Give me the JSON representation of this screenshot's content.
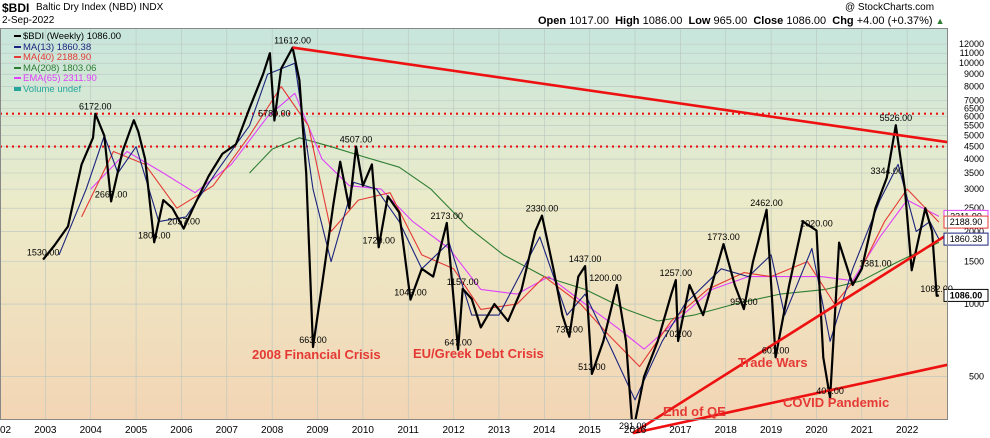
{
  "header": {
    "symbol": "$BDI",
    "name": "Baltic Dry Index (NBD)  INDX",
    "date": "2-Sep-2022",
    "source": "@ StockCharts.com",
    "open_label": "Open",
    "open": "1017.00",
    "high_label": "High",
    "high": "1086.00",
    "low_label": "Low",
    "low": "965.00",
    "close_label": "Close",
    "close": "1086.00",
    "chg_label": "Chg",
    "chg": "+4.00 (+0.37%)",
    "chg_arrow": "▲"
  },
  "legend": [
    {
      "text": "$BDI (Weekly) 1086.00",
      "color": "#000000",
      "icon": "line-icon"
    },
    {
      "text": "MA(13) 1860.38",
      "color": "#1a237e",
      "icon": "line-icon"
    },
    {
      "text": "MA(40) 2188.90",
      "color": "#e53935",
      "icon": "line-icon"
    },
    {
      "text": "MA(208) 1803.06",
      "color": "#2e7d32",
      "icon": "line-icon"
    },
    {
      "text": "EMA(65) 2311.90",
      "color": "#e040fb",
      "icon": "line-icon"
    },
    {
      "text": "Volume undef",
      "color": "#26a69a",
      "icon": "bar-icon"
    }
  ],
  "annotations": [
    {
      "text": "2008 Financial Crisis",
      "color": "#e53935"
    },
    {
      "text": "EU/Greek Debt Crisis",
      "color": "#e53935"
    },
    {
      "text": "End of QE",
      "color": "#e53935"
    },
    {
      "text": "Trade Wars",
      "color": "#e53935"
    },
    {
      "text": "COVID Pandemic",
      "color": "#e53935"
    }
  ],
  "colors": {
    "trendline": "#ee1111",
    "price": "#000000",
    "ma13": "#1a237e",
    "ma40": "#e53935",
    "ma208": "#2e7d32",
    "ema65": "#e040fb"
  },
  "chart_data": {
    "type": "line",
    "title": "$BDI Baltic Dry Index (NBD) INDX",
    "log_scale": true,
    "ylim": [
      330,
      14000
    ],
    "xlim": [
      2002.0,
      2022.9
    ],
    "x_ticks": [
      "2002",
      "2003",
      "2004",
      "2005",
      "2006",
      "2007",
      "2008",
      "2009",
      "2010",
      "2011",
      "2012",
      "2013",
      "2014",
      "2015",
      "2016",
      "2017",
      "2018",
      "2019",
      "2020",
      "2021",
      "2022"
    ],
    "y_ticks": [
      "12000",
      "11000",
      "10000",
      "9000",
      "8000",
      "7000",
      "6500",
      "6000",
      "5500",
      "5000",
      "4500",
      "4000",
      "3500",
      "3000",
      "2500",
      "2000",
      "1500",
      "1000",
      "500"
    ],
    "last_value_labels": [
      {
        "value": 2311.9,
        "text": "2311.90",
        "series": "EMA(65)"
      },
      {
        "value": 2188.9,
        "text": "2188.90",
        "series": "MA(40)"
      },
      {
        "value": 1860.38,
        "text": "1860.38",
        "series": "MA(13)"
      },
      {
        "value": 1086,
        "text": "1086.00",
        "series": "$BDI"
      }
    ],
    "reference_lines": [
      6172,
      4507
    ],
    "trendlines": [
      {
        "x": [
          2008.45,
          2022.9
        ],
        "y": [
          11612,
          4700
        ]
      },
      {
        "x": [
          2015.95,
          2022.9
        ],
        "y": [
          291,
          1950
        ]
      },
      {
        "x": [
          2015.95,
          2022.9
        ],
        "y": [
          291,
          560
        ]
      }
    ],
    "point_labels": [
      {
        "x": 2002.95,
        "y": 1530,
        "text": "1530.00"
      },
      {
        "x": 2004.1,
        "y": 6172,
        "text": "6172.00"
      },
      {
        "x": 2004.45,
        "y": 2667,
        "text": "2667.00"
      },
      {
        "x": 2005.4,
        "y": 1804,
        "text": "1804.00"
      },
      {
        "x": 2006.05,
        "y": 2057,
        "text": "2057.00"
      },
      {
        "x": 2008.45,
        "y": 11612,
        "text": "11612.00"
      },
      {
        "x": 2008.05,
        "y": 5780,
        "text": "5780.00"
      },
      {
        "x": 2008.9,
        "y": 663,
        "text": "663.00"
      },
      {
        "x": 2009.85,
        "y": 4507,
        "text": "4507.00"
      },
      {
        "x": 2010.35,
        "y": 1720,
        "text": "1720.00"
      },
      {
        "x": 2011.05,
        "y": 1043,
        "text": "1043.00"
      },
      {
        "x": 2011.85,
        "y": 2173,
        "text": "2173.00"
      },
      {
        "x": 2012.1,
        "y": 647,
        "text": "647.00"
      },
      {
        "x": 2012.2,
        "y": 1157,
        "text": "1157.00"
      },
      {
        "x": 2013.95,
        "y": 2330,
        "text": "2330.00"
      },
      {
        "x": 2014.55,
        "y": 732,
        "text": "732.00"
      },
      {
        "x": 2014.9,
        "y": 1437,
        "text": "1437.00"
      },
      {
        "x": 2015.05,
        "y": 513,
        "text": "513.00"
      },
      {
        "x": 2015.35,
        "y": 1200,
        "text": "1200.00"
      },
      {
        "x": 2015.95,
        "y": 291,
        "text": "291.00"
      },
      {
        "x": 2016.9,
        "y": 1257,
        "text": "1257.00"
      },
      {
        "x": 2016.95,
        "y": 702,
        "text": "702.00"
      },
      {
        "x": 2017.95,
        "y": 1773,
        "text": "1773.00"
      },
      {
        "x": 2018.4,
        "y": 953,
        "text": "953.00"
      },
      {
        "x": 2018.9,
        "y": 2462,
        "text": "2462.00"
      },
      {
        "x": 2019.1,
        "y": 601,
        "text": "601.00"
      },
      {
        "x": 2020.0,
        "y": 2020,
        "text": "2020.00"
      },
      {
        "x": 2020.3,
        "y": 407,
        "text": "407.00"
      },
      {
        "x": 2021.75,
        "y": 5526,
        "text": "5526.00"
      },
      {
        "x": 2021.55,
        "y": 3344,
        "text": "3344.00"
      },
      {
        "x": 2021.3,
        "y": 1381,
        "text": "1381.00"
      },
      {
        "x": 2022.65,
        "y": 1082,
        "text": "1082.00"
      }
    ],
    "series": [
      {
        "name": "$BDI (Weekly)",
        "points": [
          [
            2002.95,
            1530
          ],
          [
            2003.2,
            1750
          ],
          [
            2003.5,
            2100
          ],
          [
            2003.8,
            3800
          ],
          [
            2004.05,
            4900
          ],
          [
            2004.1,
            6172
          ],
          [
            2004.3,
            5000
          ],
          [
            2004.45,
            2667
          ],
          [
            2004.7,
            4300
          ],
          [
            2004.95,
            5800
          ],
          [
            2005.05,
            5200
          ],
          [
            2005.2,
            4000
          ],
          [
            2005.4,
            1804
          ],
          [
            2005.6,
            2700
          ],
          [
            2005.8,
            2500
          ],
          [
            2006.05,
            2057
          ],
          [
            2006.3,
            2600
          ],
          [
            2006.6,
            3400
          ],
          [
            2006.9,
            4200
          ],
          [
            2007.2,
            4600
          ],
          [
            2007.5,
            6500
          ],
          [
            2007.8,
            9000
          ],
          [
            2007.95,
            11000
          ],
          [
            2008.05,
            5780
          ],
          [
            2008.2,
            9500
          ],
          [
            2008.45,
            11612
          ],
          [
            2008.6,
            8500
          ],
          [
            2008.75,
            3500
          ],
          [
            2008.9,
            663
          ],
          [
            2009.1,
            1200
          ],
          [
            2009.35,
            2600
          ],
          [
            2009.5,
            3900
          ],
          [
            2009.7,
            2500
          ],
          [
            2009.85,
            4507
          ],
          [
            2010.0,
            3100
          ],
          [
            2010.2,
            3800
          ],
          [
            2010.35,
            1720
          ],
          [
            2010.55,
            2800
          ],
          [
            2010.8,
            2400
          ],
          [
            2011.05,
            1043
          ],
          [
            2011.3,
            1400
          ],
          [
            2011.55,
            1300
          ],
          [
            2011.85,
            2173
          ],
          [
            2012.1,
            647
          ],
          [
            2012.2,
            1157
          ],
          [
            2012.4,
            1050
          ],
          [
            2012.6,
            800
          ],
          [
            2012.9,
            1000
          ],
          [
            2013.2,
            850
          ],
          [
            2013.5,
            1150
          ],
          [
            2013.8,
            2000
          ],
          [
            2013.95,
            2330
          ],
          [
            2014.2,
            1400
          ],
          [
            2014.4,
            900
          ],
          [
            2014.55,
            732
          ],
          [
            2014.75,
            1300
          ],
          [
            2014.9,
            1437
          ],
          [
            2015.05,
            513
          ],
          [
            2015.3,
            700
          ],
          [
            2015.6,
            1200
          ],
          [
            2015.8,
            700
          ],
          [
            2015.95,
            291
          ],
          [
            2016.2,
            500
          ],
          [
            2016.5,
            700
          ],
          [
            2016.8,
            1100
          ],
          [
            2016.9,
            1257
          ],
          [
            2016.95,
            702
          ],
          [
            2017.2,
            1200
          ],
          [
            2017.5,
            900
          ],
          [
            2017.95,
            1773
          ],
          [
            2018.2,
            1200
          ],
          [
            2018.4,
            953
          ],
          [
            2018.6,
            1500
          ],
          [
            2018.9,
            2462
          ],
          [
            2019.1,
            601
          ],
          [
            2019.4,
            1200
          ],
          [
            2019.7,
            2200
          ],
          [
            2020.0,
            2020
          ],
          [
            2020.15,
            600
          ],
          [
            2020.3,
            407
          ],
          [
            2020.5,
            1800
          ],
          [
            2020.8,
            1200
          ],
          [
            2021.0,
            1400
          ],
          [
            2021.3,
            2500
          ],
          [
            2021.55,
            3344
          ],
          [
            2021.75,
            5526
          ],
          [
            2021.95,
            3000
          ],
          [
            2022.1,
            1381
          ],
          [
            2022.4,
            2500
          ],
          [
            2022.55,
            2000
          ],
          [
            2022.65,
            1082
          ],
          [
            2022.7,
            1086
          ]
        ]
      },
      {
        "name": "MA(13)",
        "points": [
          [
            2003.3,
            1600
          ],
          [
            2003.9,
            3000
          ],
          [
            2004.3,
            5000
          ],
          [
            2004.6,
            3500
          ],
          [
            2005.0,
            4500
          ],
          [
            2005.5,
            2200
          ],
          [
            2006.1,
            2300
          ],
          [
            2006.8,
            3600
          ],
          [
            2007.5,
            5500
          ],
          [
            2007.9,
            9000
          ],
          [
            2008.5,
            10000
          ],
          [
            2008.9,
            3000
          ],
          [
            2009.3,
            1500
          ],
          [
            2009.8,
            3200
          ],
          [
            2010.3,
            3000
          ],
          [
            2010.8,
            2200
          ],
          [
            2011.3,
            1400
          ],
          [
            2011.9,
            1800
          ],
          [
            2012.4,
            900
          ],
          [
            2013.0,
            900
          ],
          [
            2013.9,
            1900
          ],
          [
            2014.5,
            900
          ],
          [
            2014.9,
            1100
          ],
          [
            2015.4,
            700
          ],
          [
            2016.0,
            400
          ],
          [
            2016.6,
            700
          ],
          [
            2017.1,
            1000
          ],
          [
            2017.9,
            1400
          ],
          [
            2018.5,
            1300
          ],
          [
            2019.0,
            1600
          ],
          [
            2019.3,
            900
          ],
          [
            2019.9,
            1700
          ],
          [
            2020.3,
            700
          ],
          [
            2020.8,
            1400
          ],
          [
            2021.4,
            2700
          ],
          [
            2021.8,
            3800
          ],
          [
            2022.2,
            2000
          ],
          [
            2022.5,
            2200
          ],
          [
            2022.7,
            1860
          ]
        ]
      },
      {
        "name": "MA(40)",
        "points": [
          [
            2003.8,
            2300
          ],
          [
            2004.5,
            4300
          ],
          [
            2005.2,
            3800
          ],
          [
            2005.9,
            2500
          ],
          [
            2006.7,
            3100
          ],
          [
            2007.5,
            5000
          ],
          [
            2008.2,
            8000
          ],
          [
            2008.8,
            5500
          ],
          [
            2009.3,
            2000
          ],
          [
            2009.9,
            2700
          ],
          [
            2010.6,
            2900
          ],
          [
            2011.3,
            1600
          ],
          [
            2012.0,
            1400
          ],
          [
            2012.6,
            950
          ],
          [
            2013.4,
            1000
          ],
          [
            2014.0,
            1300
          ],
          [
            2014.8,
            1000
          ],
          [
            2015.4,
            750
          ],
          [
            2016.1,
            550
          ],
          [
            2016.8,
            850
          ],
          [
            2017.6,
            1150
          ],
          [
            2018.4,
            1350
          ],
          [
            2019.0,
            1300
          ],
          [
            2019.8,
            1500
          ],
          [
            2020.4,
            1000
          ],
          [
            2020.9,
            1300
          ],
          [
            2021.5,
            2200
          ],
          [
            2022.0,
            3000
          ],
          [
            2022.7,
            2189
          ]
        ]
      },
      {
        "name": "MA(208)",
        "points": [
          [
            2007.5,
            3500
          ],
          [
            2008.0,
            4400
          ],
          [
            2008.6,
            4900
          ],
          [
            2009.3,
            4500
          ],
          [
            2010.0,
            4100
          ],
          [
            2010.8,
            3700
          ],
          [
            2011.5,
            3000
          ],
          [
            2012.3,
            2100
          ],
          [
            2013.1,
            1600
          ],
          [
            2014.0,
            1300
          ],
          [
            2014.9,
            1150
          ],
          [
            2015.8,
            950
          ],
          [
            2016.5,
            850
          ],
          [
            2017.3,
            900
          ],
          [
            2018.2,
            1000
          ],
          [
            2019.2,
            1100
          ],
          [
            2020.2,
            1150
          ],
          [
            2021.0,
            1250
          ],
          [
            2021.8,
            1500
          ],
          [
            2022.7,
            1803
          ]
        ]
      },
      {
        "name": "EMA(65)",
        "points": [
          [
            2004.0,
            3000
          ],
          [
            2004.8,
            4300
          ],
          [
            2005.6,
            3500
          ],
          [
            2006.3,
            2900
          ],
          [
            2007.1,
            3800
          ],
          [
            2007.9,
            6000
          ],
          [
            2008.5,
            7500
          ],
          [
            2009.1,
            4000
          ],
          [
            2009.7,
            3100
          ],
          [
            2010.4,
            3000
          ],
          [
            2011.1,
            2200
          ],
          [
            2011.9,
            1700
          ],
          [
            2012.6,
            1150
          ],
          [
            2013.4,
            1100
          ],
          [
            2014.1,
            1300
          ],
          [
            2014.9,
            1000
          ],
          [
            2015.6,
            800
          ],
          [
            2016.2,
            650
          ],
          [
            2016.9,
            850
          ],
          [
            2017.7,
            1150
          ],
          [
            2018.5,
            1300
          ],
          [
            2019.3,
            1300
          ],
          [
            2020.1,
            1300
          ],
          [
            2020.8,
            1250
          ],
          [
            2021.4,
            1900
          ],
          [
            2022.0,
            2700
          ],
          [
            2022.7,
            2312
          ]
        ]
      }
    ]
  }
}
